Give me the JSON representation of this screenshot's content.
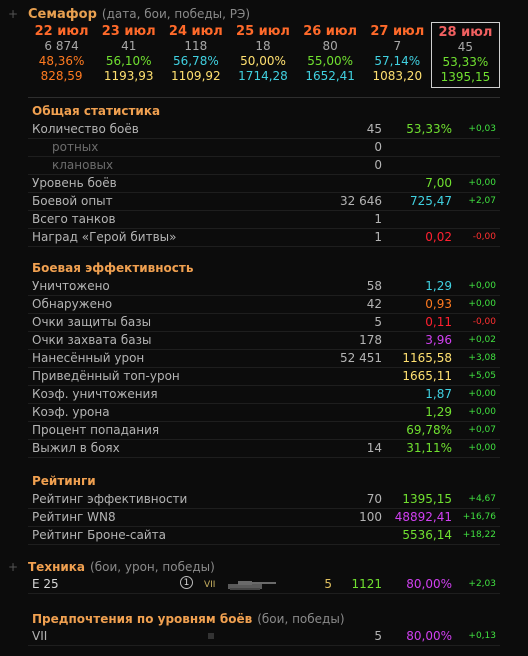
{
  "semaphore": {
    "title": "Семафор",
    "subtitle": "(дата, бои, победы, РЭ)",
    "days": [
      {
        "date": "22 июл",
        "battles": "6 874",
        "winrate": "48,36%",
        "winrate_color": "#ff7a20",
        "rating": "828,59",
        "rating_color": "#ff7a20",
        "active": false
      },
      {
        "date": "23 июл",
        "battles": "41",
        "winrate": "56,10%",
        "winrate_color": "#70e030",
        "rating": "1193,93",
        "rating_color": "#ffe070",
        "active": false
      },
      {
        "date": "24 июл",
        "battles": "118",
        "winrate": "56,78%",
        "winrate_color": "#40d0e0",
        "rating": "1109,92",
        "rating_color": "#ffe070",
        "active": false
      },
      {
        "date": "25 июл",
        "battles": "18",
        "winrate": "50,00%",
        "winrate_color": "#ffe070",
        "rating": "1714,28",
        "rating_color": "#40d0e0",
        "active": false
      },
      {
        "date": "26 июл",
        "battles": "80",
        "winrate": "55,00%",
        "winrate_color": "#70e030",
        "rating": "1652,41",
        "rating_color": "#40d0e0",
        "active": false
      },
      {
        "date": "27 июл",
        "battles": "7",
        "winrate": "57,14%",
        "winrate_color": "#40d0e0",
        "rating": "1083,20",
        "rating_color": "#ffe070",
        "active": false
      },
      {
        "date": "28 июл",
        "battles": "45",
        "winrate": "53,33%",
        "winrate_color": "#70e030",
        "rating": "1395,15",
        "rating_color": "#70e030",
        "active": true
      }
    ]
  },
  "general": {
    "title": "Общая статистика",
    "rows": [
      {
        "label": "Количество боёв",
        "count": "45",
        "value": "53,33%",
        "value_color": "#70e030",
        "delta": "+0,03",
        "delta_color": "#40e040",
        "sub": false
      },
      {
        "label": "ротных",
        "count": "0",
        "value": "",
        "value_color": "#b4b4b4",
        "delta": "",
        "delta_color": "#40e040",
        "sub": true
      },
      {
        "label": "клановых",
        "count": "0",
        "value": "",
        "value_color": "#b4b4b4",
        "delta": "",
        "delta_color": "#40e040",
        "sub": true
      },
      {
        "label": "Уровень боёв",
        "count": "",
        "value": "7,00",
        "value_color": "#70e030",
        "delta": "+0,00",
        "delta_color": "#40e040",
        "sub": false
      },
      {
        "label": "Боевой опыт",
        "count": "32 646",
        "value": "725,47",
        "value_color": "#40d0e0",
        "delta": "+2,07",
        "delta_color": "#40e040",
        "sub": false
      },
      {
        "label": "Всего танков",
        "count": "1",
        "value": "",
        "value_color": "#b4b4b4",
        "delta": "",
        "delta_color": "#40e040",
        "sub": false
      },
      {
        "label": "Наград «Герой битвы»",
        "count": "1",
        "value": "0,02",
        "value_color": "#ff2030",
        "delta": "-0,00",
        "delta_color": "#ff3030",
        "sub": false
      }
    ]
  },
  "efficiency": {
    "title": "Боевая эффективность",
    "rows": [
      {
        "label": "Уничтожено",
        "count": "58",
        "value": "1,29",
        "value_color": "#40d0e0",
        "delta": "+0,00",
        "delta_color": "#40e040"
      },
      {
        "label": "Обнаружено",
        "count": "42",
        "value": "0,93",
        "value_color": "#ff7a20",
        "delta": "+0,00",
        "delta_color": "#40e040"
      },
      {
        "label": "Очки защиты базы",
        "count": "5",
        "value": "0,11",
        "value_color": "#ff2030",
        "delta": "-0,00",
        "delta_color": "#ff3030"
      },
      {
        "label": "Очки захвата базы",
        "count": "178",
        "value": "3,96",
        "value_color": "#d040f0",
        "delta": "+0,02",
        "delta_color": "#40e040"
      },
      {
        "label": "Нанесённый урон",
        "count": "52 451",
        "value": "1165,58",
        "value_color": "#ffe070",
        "delta": "+3,08",
        "delta_color": "#40e040"
      },
      {
        "label": "Приведённый топ-урон",
        "count": "",
        "value": "1665,11",
        "value_color": "#ffe070",
        "delta": "+5,05",
        "delta_color": "#40e040"
      },
      {
        "label": "Коэф. уничтожения",
        "count": "",
        "value": "1,87",
        "value_color": "#40d0e0",
        "delta": "+0,00",
        "delta_color": "#40e040"
      },
      {
        "label": "Коэф. урона",
        "count": "",
        "value": "1,29",
        "value_color": "#70e030",
        "delta": "+0,00",
        "delta_color": "#40e040"
      },
      {
        "label": "Процент попадания",
        "count": "",
        "value": "69,78%",
        "value_color": "#70e030",
        "delta": "+0,07",
        "delta_color": "#40e040"
      },
      {
        "label": "Выжил в боях",
        "count": "14",
        "value": "31,11%",
        "value_color": "#70e030",
        "delta": "+0,00",
        "delta_color": "#40e040"
      }
    ]
  },
  "ratings": {
    "title": "Рейтинги",
    "rows": [
      {
        "label": "Рейтинг эффективности",
        "count": "70",
        "value": "1395,15",
        "value_color": "#70e030",
        "delta": "+4,67",
        "delta_color": "#40e040"
      },
      {
        "label": "Рейтинг WN8",
        "count": "100",
        "value": "48892,41",
        "value_color": "#d040f0",
        "delta": "+16,76",
        "delta_color": "#40e040"
      },
      {
        "label": "Рейтинг Броне-сайта",
        "count": "",
        "value": "5536,14",
        "value_color": "#70e030",
        "delta": "+18,22",
        "delta_color": "#40e040"
      }
    ]
  },
  "vehicles": {
    "title": "Техника",
    "subtitle": "(бои, урон, победы)",
    "rows": [
      {
        "name": "E 25",
        "tier_badge": "1",
        "tier": "VII",
        "battles": "5",
        "damage": "1121",
        "winrate": "80,00%",
        "winrate_color": "#d040f0",
        "delta": "+2,03",
        "delta_color": "#40e040"
      }
    ]
  },
  "tier_prefs": {
    "title": "Предпочтения по уровням боёв",
    "subtitle": "(бои, победы)",
    "rows": [
      {
        "tier": "VII",
        "battles": "5",
        "winrate": "80,00%",
        "winrate_color": "#d040f0",
        "delta": "+0,13",
        "delta_color": "#40e040"
      }
    ]
  }
}
